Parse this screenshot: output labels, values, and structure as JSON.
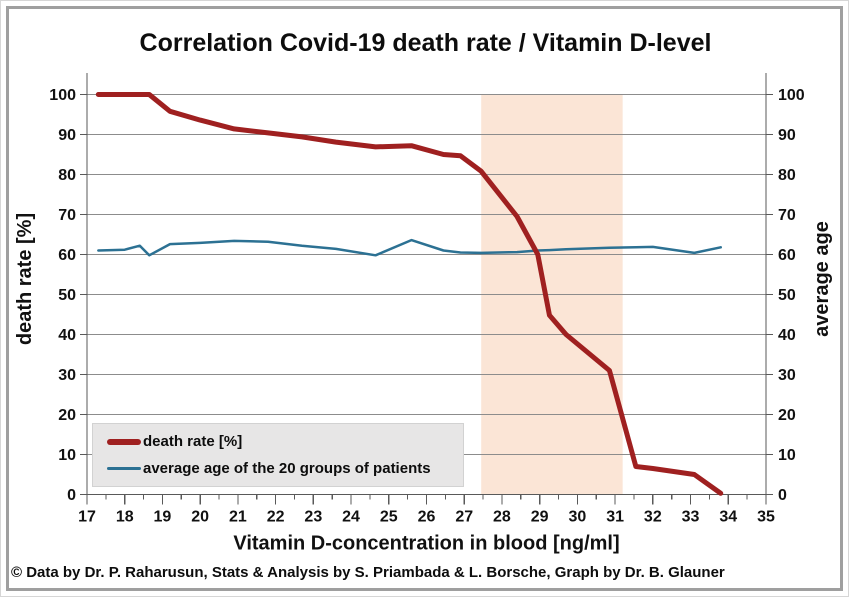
{
  "title": "Correlation Covid-19 death rate / Vitamin D-level",
  "footer": "© Data by Dr. P. Raharusun, Stats & Analysis by S. Priambada & L. Borsche, Graph by Dr. B. Glauner",
  "chart_data": {
    "type": "line",
    "title": "Correlation Covid-19 death rate / Vitamin D-level",
    "xlabel": "Vitamin D-concentration in blood [ng/ml]",
    "ylabel_left": "death rate [%]",
    "ylabel_right": "average age",
    "xlim": [
      17,
      35
    ],
    "ylim": [
      0,
      100
    ],
    "x_tick_step": 1,
    "x_minor_tick_step": 0.5,
    "y_tick_step": 10,
    "grid": true,
    "legend_position": "inside-bottom-left",
    "colors": {
      "gridline": "#8c8c8c",
      "axis": "#595959",
      "band": "#fbe5d6",
      "legend_background": "#e7e6e6",
      "text": "#111111"
    },
    "highlight_band": {
      "x_start": 27.45,
      "x_end": 31.2,
      "color": "#fbe5d6"
    },
    "x": [
      17.3,
      18.0,
      18.4,
      18.65,
      19.2,
      20.0,
      20.9,
      21.8,
      22.7,
      23.6,
      24.65,
      25.6,
      26.45,
      26.9,
      27.45,
      28.4,
      28.95,
      29.26,
      29.7,
      30.85,
      31.55,
      32.0,
      33.1,
      33.8
    ],
    "series": [
      {
        "name": "death rate [%]",
        "color": "#9f2020",
        "stroke_width": 5,
        "values": [
          100,
          100,
          100,
          100,
          95.8,
          93.6,
          91.4,
          90.4,
          89.4,
          88.1,
          86.9,
          87.2,
          85.0,
          84.7,
          80.8,
          69.5,
          60.0,
          44.8,
          40.0,
          31.0,
          7.0,
          6.5,
          5.0,
          0.3
        ]
      },
      {
        "name": "average age of the 20 groups of patients",
        "color": "#2c7193",
        "stroke_width": 2.5,
        "values": [
          61.0,
          61.2,
          62.2,
          59.8,
          62.6,
          62.9,
          63.4,
          63.2,
          62.2,
          61.4,
          59.8,
          63.6,
          61.0,
          60.5,
          60.4,
          60.6,
          61.0,
          61.1,
          61.3,
          61.7,
          61.8,
          61.9,
          60.4,
          61.8
        ]
      }
    ]
  }
}
